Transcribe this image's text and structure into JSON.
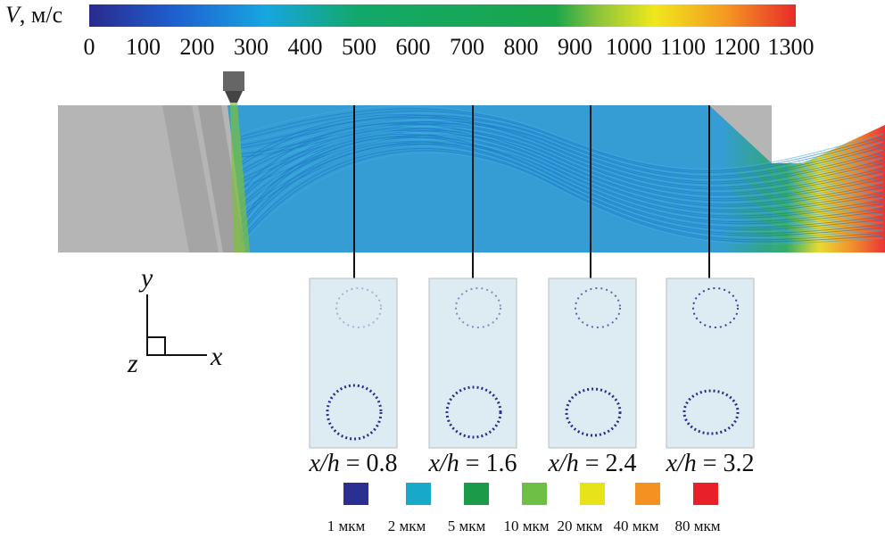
{
  "colorbar": {
    "symbol": "V",
    "unit": ", м/с",
    "ticks": [
      0,
      100,
      200,
      300,
      400,
      500,
      600,
      700,
      800,
      900,
      1000,
      1100,
      1200,
      1300
    ]
  },
  "axes": {
    "y": "y",
    "z": "z",
    "x": "x"
  },
  "sections": [
    {
      "symbol": "x/h",
      "relation": "=",
      "value": 0.8
    },
    {
      "symbol": "x/h",
      "relation": "=",
      "value": 1.6
    },
    {
      "symbol": "x/h",
      "relation": "=",
      "value": 2.4
    },
    {
      "symbol": "x/h",
      "relation": "=",
      "value": 3.2
    }
  ],
  "legend": [
    {
      "label": "1 мкм",
      "color": "#2b2f8f"
    },
    {
      "label": "2 мкм",
      "color": "#18a8c8"
    },
    {
      "label": "5 мкм",
      "color": "#1b9a4a"
    },
    {
      "label": "10 мкм",
      "color": "#6dbf45"
    },
    {
      "label": "20 мкм",
      "color": "#e6e31a"
    },
    {
      "label": "40 мкм",
      "color": "#f39220"
    },
    {
      "label": "80 мкм",
      "color": "#e8202a"
    }
  ]
}
